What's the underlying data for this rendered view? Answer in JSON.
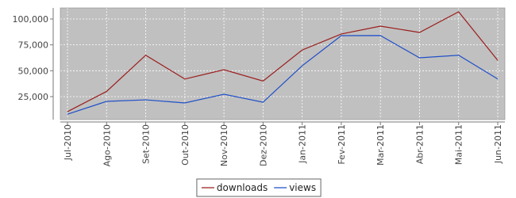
{
  "chart_data": {
    "type": "line",
    "categories": [
      "Jul-2010",
      "Ago-2010",
      "Set-2010",
      "Out-2010",
      "Nov-2010",
      "Dez-2010",
      "Jan-2011",
      "Fev-2011",
      "Mar-2011",
      "Abr-2011",
      "Mai-2011",
      "Jun-2011"
    ],
    "series": [
      {
        "name": "downloads",
        "color": "#9b1c1c",
        "values": [
          10500,
          30000,
          65000,
          42000,
          51000,
          40000,
          70000,
          85500,
          93100,
          87000,
          107000,
          60000
        ]
      },
      {
        "name": "views",
        "color": "#1f4fc8",
        "values": [
          8000,
          20400,
          21900,
          18900,
          27300,
          19600,
          54800,
          83900,
          84000,
          62500,
          65000,
          42000
        ]
      }
    ],
    "ylim": [
      2800,
      110700
    ],
    "yticks": [
      {
        "value": 25000,
        "label": "25,000"
      },
      {
        "value": 50000,
        "label": "50,000"
      },
      {
        "value": 75000,
        "label": "75,000"
      },
      {
        "value": 100000,
        "label": "100,000"
      }
    ],
    "grid": true,
    "legend": "bottom"
  }
}
